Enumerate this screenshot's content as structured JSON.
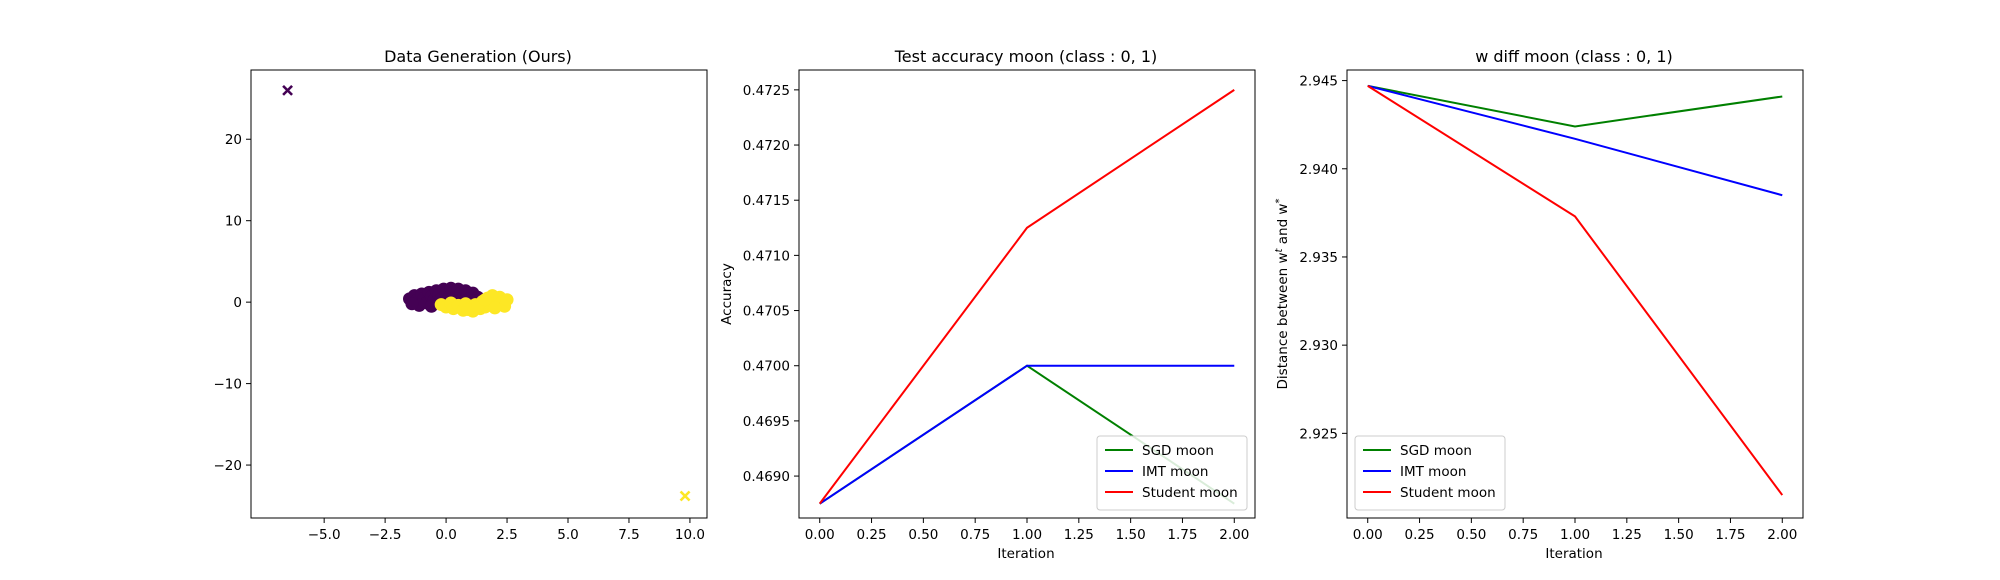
{
  "figure": {
    "background": "#ffffff"
  },
  "chart_data": [
    {
      "type": "scatter",
      "title": "Data Generation (Ours)",
      "xlabel": "",
      "ylabel": "",
      "xlim": [
        -8.0,
        10.7
      ],
      "ylim": [
        -26.5,
        28.5
      ],
      "xticks": [
        -5.0,
        -2.5,
        0.0,
        2.5,
        5.0,
        7.5,
        10.0
      ],
      "xtick_labels": [
        "−5.0",
        "−2.5",
        "0.0",
        "2.5",
        "5.0",
        "7.5",
        "10.0"
      ],
      "yticks": [
        -20,
        -10,
        0,
        10,
        20
      ],
      "ytick_labels": [
        "−20",
        "−10",
        "0",
        "10",
        "20"
      ],
      "grid": false,
      "series": [
        {
          "color": "#440154",
          "marker": "o",
          "points": [
            [
              -1.5,
              0.4
            ],
            [
              -1.3,
              0.8
            ],
            [
              -1.2,
              0.2
            ],
            [
              -1.0,
              1.0
            ],
            [
              -0.9,
              0.5
            ],
            [
              -0.8,
              -0.1
            ],
            [
              -0.7,
              1.2
            ],
            [
              -0.6,
              0.7
            ],
            [
              -0.5,
              0.2
            ],
            [
              -0.4,
              1.4
            ],
            [
              -0.3,
              0.9
            ],
            [
              -0.2,
              0.4
            ],
            [
              -0.1,
              1.6
            ],
            [
              0.0,
              1.1
            ],
            [
              0.1,
              0.6
            ],
            [
              0.2,
              1.7
            ],
            [
              0.3,
              1.2
            ],
            [
              0.4,
              0.7
            ],
            [
              0.5,
              1.6
            ],
            [
              0.6,
              1.1
            ],
            [
              0.7,
              0.6
            ],
            [
              0.8,
              1.4
            ],
            [
              0.9,
              1.0
            ],
            [
              1.0,
              0.5
            ],
            [
              1.1,
              1.1
            ],
            [
              1.3,
              0.6
            ],
            [
              -1.1,
              -0.4
            ],
            [
              -0.6,
              -0.5
            ],
            [
              0.0,
              0.3
            ],
            [
              0.5,
              0.1
            ],
            [
              -1.4,
              -0.2
            ],
            [
              1.2,
              0.2
            ]
          ]
        },
        {
          "color": "#fde725",
          "marker": "o",
          "points": [
            [
              -0.2,
              -0.3
            ],
            [
              0.0,
              -0.6
            ],
            [
              0.2,
              -0.1
            ],
            [
              0.3,
              -0.8
            ],
            [
              0.5,
              -0.4
            ],
            [
              0.7,
              -1.0
            ],
            [
              0.8,
              -0.2
            ],
            [
              1.0,
              -0.7
            ],
            [
              1.1,
              -1.1
            ],
            [
              1.2,
              -0.3
            ],
            [
              1.4,
              -0.8
            ],
            [
              1.5,
              0.1
            ],
            [
              1.6,
              -0.6
            ],
            [
              1.7,
              0.5
            ],
            [
              1.8,
              -0.2
            ],
            [
              1.9,
              0.8
            ],
            [
              2.0,
              0.2
            ],
            [
              2.1,
              -0.4
            ],
            [
              2.2,
              0.6
            ],
            [
              2.3,
              0.0
            ],
            [
              2.4,
              -0.5
            ],
            [
              2.5,
              0.3
            ],
            [
              0.9,
              -0.9
            ],
            [
              1.3,
              -0.5
            ],
            [
              2.0,
              -0.7
            ],
            [
              1.6,
              0.3
            ]
          ]
        },
        {
          "color": "#440154",
          "marker": "x",
          "points": [
            [
              -6.5,
              26.0
            ]
          ]
        },
        {
          "color": "#fde725",
          "marker": "x",
          "points": [
            [
              9.8,
              -23.8
            ]
          ]
        }
      ]
    },
    {
      "type": "line",
      "title": "Test accuracy moon (class : 0, 1)",
      "xlabel": "Iteration",
      "ylabel": "Accuracy",
      "xlim": [
        -0.1,
        2.1
      ],
      "ylim": [
        0.46862,
        0.47268
      ],
      "xticks": [
        0.0,
        0.25,
        0.5,
        0.75,
        1.0,
        1.25,
        1.5,
        1.75,
        2.0
      ],
      "xtick_labels": [
        "0.00",
        "0.25",
        "0.50",
        "0.75",
        "1.00",
        "1.25",
        "1.50",
        "1.75",
        "2.00"
      ],
      "yticks": [
        0.469,
        0.4695,
        0.47,
        0.4705,
        0.471,
        0.4715,
        0.472,
        0.4725
      ],
      "ytick_labels": [
        "0.4690",
        "0.4695",
        "0.4700",
        "0.4705",
        "0.4710",
        "0.4715",
        "0.4720",
        "0.4725"
      ],
      "grid": false,
      "legend_position": "lower-right",
      "x": [
        0,
        1,
        2
      ],
      "series": [
        {
          "name": "SGD moon",
          "color": "#008000",
          "values": [
            0.46875,
            0.47,
            0.46875
          ]
        },
        {
          "name": "IMT moon",
          "color": "#0000ff",
          "values": [
            0.46875,
            0.47,
            0.47
          ]
        },
        {
          "name": "Student moon",
          "color": "#ff0000",
          "values": [
            0.46875,
            0.47125,
            0.4725
          ]
        }
      ]
    },
    {
      "type": "line",
      "title": "w diff moon (class : 0, 1)",
      "xlabel": "Iteration",
      "ylabel": "Distance between w^t and w^*",
      "xlim": [
        -0.1,
        2.1
      ],
      "ylim": [
        2.9202,
        2.9456
      ],
      "xticks": [
        0.0,
        0.25,
        0.5,
        0.75,
        1.0,
        1.25,
        1.5,
        1.75,
        2.0
      ],
      "xtick_labels": [
        "0.00",
        "0.25",
        "0.50",
        "0.75",
        "1.00",
        "1.25",
        "1.50",
        "1.75",
        "2.00"
      ],
      "yticks": [
        2.925,
        2.93,
        2.935,
        2.94,
        2.945
      ],
      "ytick_labels": [
        "2.925",
        "2.930",
        "2.935",
        "2.940",
        "2.945"
      ],
      "grid": false,
      "legend_position": "lower-left",
      "x": [
        0,
        1,
        2
      ],
      "series": [
        {
          "name": "SGD moon",
          "color": "#008000",
          "values": [
            2.9447,
            2.9424,
            2.9441
          ]
        },
        {
          "name": "IMT moon",
          "color": "#0000ff",
          "values": [
            2.9447,
            2.9417,
            2.9385
          ]
        },
        {
          "name": "Student moon",
          "color": "#ff0000",
          "values": [
            2.9447,
            2.9373,
            2.9215
          ]
        }
      ]
    }
  ]
}
